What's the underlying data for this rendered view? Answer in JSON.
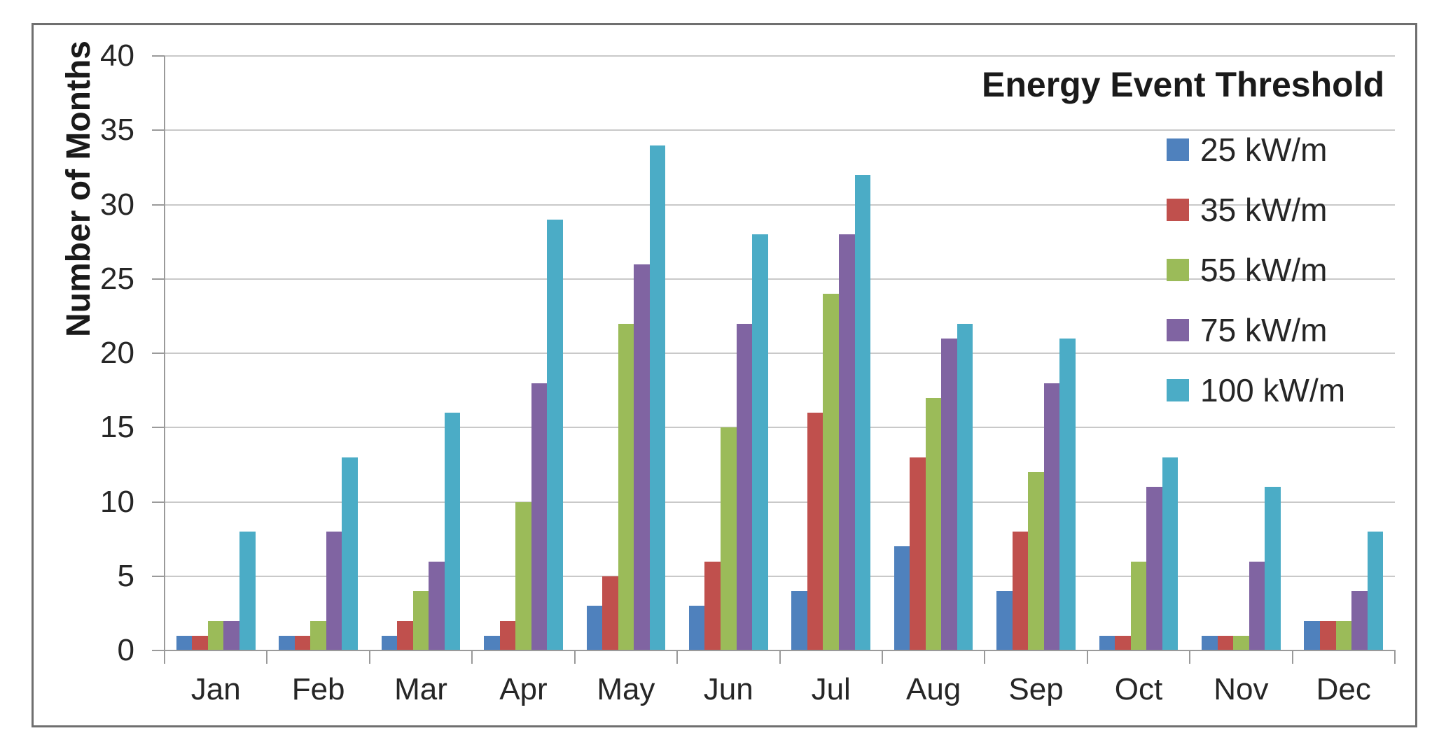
{
  "chart_data": {
    "type": "bar",
    "title": "",
    "legend_title": "Energy Event Threshold",
    "ylabel": "Number of Months",
    "xlabel": "",
    "ylim": [
      0,
      40
    ],
    "ytick_step": 5,
    "ytick_labels": [
      "0",
      "5",
      "10",
      "15",
      "20",
      "25",
      "30",
      "35",
      "40"
    ],
    "grid": true,
    "legend_position": "top-right",
    "categories": [
      "Jan",
      "Feb",
      "Mar",
      "Apr",
      "May",
      "Jun",
      "Jul",
      "Aug",
      "Sep",
      "Oct",
      "Nov",
      "Dec"
    ],
    "series": [
      {
        "name": "25 kW/m",
        "color": "#4F81BD",
        "values": [
          1,
          1,
          1,
          1,
          3,
          3,
          4,
          7,
          4,
          1,
          1,
          2
        ]
      },
      {
        "name": "35 kW/m",
        "color": "#C0504D",
        "values": [
          1,
          1,
          2,
          2,
          5,
          6,
          16,
          13,
          8,
          1,
          1,
          2
        ]
      },
      {
        "name": "55 kW/m",
        "color": "#9BBB59",
        "values": [
          2,
          2,
          4,
          10,
          22,
          15,
          24,
          17,
          12,
          6,
          1,
          2
        ]
      },
      {
        "name": "75 kW/m",
        "color": "#8064A2",
        "values": [
          2,
          8,
          6,
          18,
          26,
          22,
          28,
          21,
          18,
          11,
          6,
          4
        ]
      },
      {
        "name": "100 kW/m",
        "color": "#4BACC6",
        "values": [
          8,
          13,
          16,
          29,
          34,
          28,
          32,
          22,
          21,
          13,
          11,
          8
        ]
      }
    ],
    "colors": {
      "gridline": "#c9c9c9",
      "axis": "#9a9a9a",
      "frame_border": "#6f6f6f",
      "text": "#262626",
      "title_text": "#1a1a1a",
      "background": "#ffffff"
    }
  }
}
